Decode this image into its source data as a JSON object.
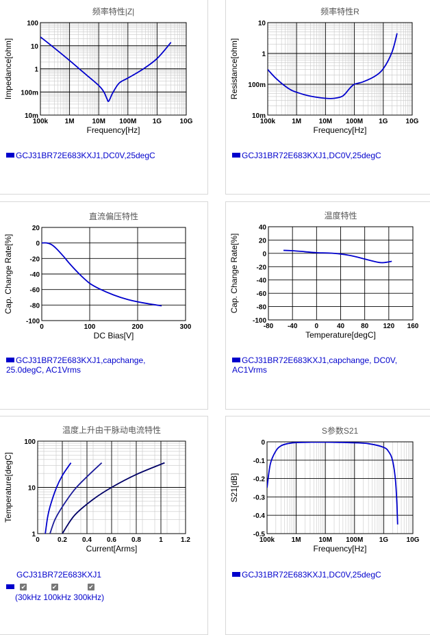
{
  "chart_data": [
    {
      "id": "impedance",
      "type": "line",
      "title": "频率特性|Z|",
      "xlabel": "Frequency[Hz]",
      "ylabel": "Impedance[ohm]",
      "xscale": "log",
      "yscale": "log",
      "xlim": [
        100000,
        10000000000
      ],
      "ylim": [
        0.01,
        100
      ],
      "x_ticks": [
        "100k",
        "1M",
        "10M",
        "100M",
        "1G",
        "10G"
      ],
      "y_ticks": [
        "100",
        "10",
        "1",
        "100m",
        "10m"
      ],
      "grid": true,
      "legend": [
        "GCJ31BR72E683KXJ1,DC0V,25degC"
      ],
      "series": [
        {
          "color": "#0000cc",
          "x": [
            100000,
            300000,
            1000000,
            3000000,
            10000000,
            15000000,
            19000000,
            22000000,
            30000000,
            50000000,
            100000000,
            300000000,
            1000000000,
            3000000000
          ],
          "y": [
            24,
            8,
            2.3,
            0.7,
            0.19,
            0.1,
            0.052,
            0.04,
            0.09,
            0.24,
            0.4,
            0.9,
            2.8,
            14
          ]
        }
      ]
    },
    {
      "id": "resistance",
      "type": "line",
      "title": "频率特性R",
      "xlabel": "Frequency[Hz]",
      "ylabel": "Resistance[ohm]",
      "xscale": "log",
      "yscale": "log",
      "xlim": [
        100000,
        10000000000
      ],
      "ylim": [
        0.01,
        10
      ],
      "x_ticks": [
        "100k",
        "1M",
        "10M",
        "100M",
        "1G",
        "10G"
      ],
      "y_ticks": [
        "10",
        "1",
        "100m",
        "10m"
      ],
      "grid": true,
      "legend": [
        "GCJ31BR72E683KXJ1,DC0V,25degC"
      ],
      "series": [
        {
          "color": "#0000cc",
          "x": [
            100000,
            200000,
            500000,
            1000000,
            3000000,
            10000000,
            20000000,
            40000000,
            70000000,
            100000000,
            200000000,
            500000000,
            1000000000,
            2000000000,
            3000000000
          ],
          "y": [
            0.3,
            0.15,
            0.075,
            0.055,
            0.041,
            0.035,
            0.035,
            0.042,
            0.075,
            0.1,
            0.12,
            0.18,
            0.32,
            1.1,
            4.5
          ]
        }
      ]
    },
    {
      "id": "dcbias",
      "type": "line",
      "title": "直流偏压特性",
      "xlabel": "DC Bias[V]",
      "ylabel": "Cap. Change Rate[%]",
      "xlim": [
        0,
        300
      ],
      "ylim": [
        -100,
        20
      ],
      "x_ticks": [
        "0",
        "100",
        "200",
        "300"
      ],
      "y_ticks": [
        "20",
        "0",
        "-20",
        "-40",
        "-60",
        "-80",
        "-100"
      ],
      "grid": true,
      "legend": [
        "GCJ31BR72E683KXJ1,capchange,",
        "25.0degC, AC1Vrms"
      ],
      "series": [
        {
          "color": "#0000cc",
          "x": [
            0,
            10,
            20,
            30,
            45,
            60,
            80,
            100,
            120,
            150,
            180,
            210,
            250
          ],
          "y": [
            0,
            0,
            -2,
            -7,
            -17,
            -28,
            -41,
            -52,
            -59,
            -67,
            -73,
            -77,
            -81
          ]
        }
      ]
    },
    {
      "id": "temperature",
      "type": "line",
      "title": "温度特性",
      "xlabel": "Temperature[degC]",
      "ylabel": "Cap. Change Rate[%]",
      "xlim": [
        -80,
        160
      ],
      "ylim": [
        -100,
        40
      ],
      "x_ticks": [
        "-80",
        "-40",
        "0",
        "40",
        "80",
        "120",
        "160"
      ],
      "y_ticks": [
        "40",
        "20",
        "0",
        "-20",
        "-40",
        "-60",
        "-80",
        "-100"
      ],
      "grid": true,
      "legend": [
        "GCJ31BR72E683KXJ1,capchange, DC0V,",
        "AC1Vrms"
      ],
      "series": [
        {
          "color": "#0000cc",
          "x": [
            -55,
            -40,
            -20,
            0,
            20,
            40,
            60,
            80,
            100,
            110,
            125
          ],
          "y": [
            4.5,
            4,
            2.5,
            1,
            0.5,
            -1,
            -4,
            -8.5,
            -13,
            -14,
            -12
          ]
        }
      ]
    },
    {
      "id": "ripple",
      "type": "line",
      "title": "温度上升由干脉动电流特性",
      "xlabel": "Current[Arms]",
      "ylabel": "Temperature[degC]",
      "yscale": "log",
      "xlim": [
        0,
        1.2
      ],
      "ylim": [
        1,
        100
      ],
      "x_ticks": [
        "0",
        "0.2",
        "0.4",
        "0.6",
        "0.8",
        "1",
        "1.2"
      ],
      "y_ticks": [
        "100",
        "10",
        "1"
      ],
      "grid": true,
      "legend_title": "GCJ31BR72E683KXJ1",
      "checkbox_labels": [
        "30kHz",
        "100kHz",
        "300kHz"
      ],
      "series": [
        {
          "color": "#0000cc",
          "x": [
            0.062,
            0.08,
            0.1,
            0.15,
            0.2,
            0.27
          ],
          "y": [
            1,
            2.2,
            3.8,
            9.5,
            18,
            34
          ]
        },
        {
          "color": "#1a1a99",
          "x": [
            0.1,
            0.14,
            0.2,
            0.3,
            0.4,
            0.52
          ],
          "y": [
            1,
            2,
            3.8,
            9,
            17,
            34
          ]
        },
        {
          "color": "#000066",
          "x": [
            0.2,
            0.3,
            0.45,
            0.6,
            0.8,
            1.03
          ],
          "y": [
            1,
            2.5,
            5.5,
            10,
            19,
            34
          ]
        }
      ]
    },
    {
      "id": "s21",
      "type": "line",
      "title": "S参数S21",
      "xlabel": "Frequency[Hz]",
      "ylabel": "S21[dB]",
      "xscale": "log",
      "xlim": [
        100000,
        10000000000
      ],
      "ylim": [
        -0.5,
        0
      ],
      "x_ticks": [
        "100k",
        "1M",
        "10M",
        "100M",
        "1G",
        "10G"
      ],
      "y_ticks": [
        "0",
        "-0.1",
        "-0.2",
        "-0.3",
        "-0.4",
        "-0.5"
      ],
      "grid": true,
      "legend": [
        "GCJ31BR72E683KXJ1,DC0V,25degC"
      ],
      "series": [
        {
          "color": "#0000cc",
          "x": [
            100000,
            130000,
            200000,
            300000,
            500000,
            1000000,
            3000000,
            10000000,
            30000000,
            100000000,
            300000000,
            1000000000,
            1500000000,
            2000000000,
            2500000000,
            2800000000,
            3000000000
          ],
          "y": [
            -0.25,
            -0.12,
            -0.05,
            -0.022,
            -0.01,
            -0.004,
            -0.002,
            -0.002,
            -0.003,
            -0.005,
            -0.01,
            -0.03,
            -0.055,
            -0.1,
            -0.2,
            -0.32,
            -0.45
          ]
        }
      ]
    }
  ]
}
